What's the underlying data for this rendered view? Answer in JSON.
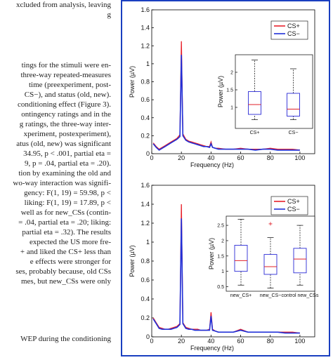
{
  "document": {
    "lines": [
      "xcluded from analysis, leaving",
      "g",
      "tings for the stimuli were en-",
      "three-way repeated-measures",
      "time (preexperiment, post-",
      "CS−), and status (old, new).",
      "conditioning effect (Figure 3).",
      "ontingency ratings and in the",
      "g ratings, the three-way inter-",
      "xperiment, postexperiment),",
      "atus (old, new) was significant",
      "34.95, p < .001, partial eta =",
      "9, p = .04, partial eta = .20).",
      "tion by examining the old and",
      "wo-way interaction was signifi-",
      "gency: F(1, 19) = 59.98, p <",
      "liking: F(1, 19) = 17.89, p <",
      "well as for new_CSs (contin-",
      "= .04, partial eta = .20; liking:",
      "partial eta = .32). The results",
      "expected the US more fre-",
      "+ and liked the CS+ less than",
      "e effects were stronger for",
      "ses, probably because, old CSs",
      "mes, but new_CSs were only",
      "WEP during the conditioning"
    ]
  },
  "chart_data": [
    {
      "type": "line",
      "xlabel": "Frequency (Hz)",
      "ylabel": "Power (µV)",
      "legend": "upper right",
      "x": [
        1,
        3,
        5,
        7,
        9,
        11,
        13,
        15,
        17,
        19,
        20,
        21,
        23,
        25,
        27,
        29,
        31,
        33,
        35,
        37,
        39,
        40,
        41,
        43,
        45,
        50,
        55,
        60,
        65,
        70,
        75,
        80,
        85,
        90,
        95,
        100
      ],
      "series": [
        {
          "name": "CS+",
          "color": "#e8202a",
          "values": [
            0.12,
            0.08,
            0.05,
            0.07,
            0.09,
            0.11,
            0.13,
            0.15,
            0.17,
            0.21,
            1.25,
            0.22,
            0.16,
            0.14,
            0.13,
            0.12,
            0.11,
            0.1,
            0.09,
            0.08,
            0.08,
            0.13,
            0.07,
            0.06,
            0.06,
            0.05,
            0.05,
            0.06,
            0.05,
            0.05,
            0.05,
            0.06,
            0.05,
            0.05,
            0.05,
            0.04
          ]
        },
        {
          "name": "CS−",
          "color": "#1f2fd8",
          "values": [
            0.11,
            0.07,
            0.04,
            0.06,
            0.08,
            0.1,
            0.12,
            0.14,
            0.16,
            0.19,
            1.1,
            0.2,
            0.15,
            0.13,
            0.12,
            0.11,
            0.1,
            0.09,
            0.08,
            0.08,
            0.07,
            0.11,
            0.07,
            0.06,
            0.05,
            0.05,
            0.05,
            0.05,
            0.05,
            0.04,
            0.05,
            0.05,
            0.04,
            0.04,
            0.04,
            0.04
          ]
        }
      ],
      "xlim": [
        0,
        110
      ],
      "xticks": [
        0,
        20,
        40,
        60,
        80,
        100
      ],
      "ylim": [
        0,
        1.6
      ],
      "yticks": [
        0,
        0.2,
        0.4,
        0.6,
        0.8,
        1,
        1.2,
        1.4,
        1.6
      ]
    },
    {
      "type": "box",
      "ylabel": "Power (µV)",
      "categories": [
        "CS+",
        "CS−"
      ],
      "box_color": "#2b2bd6",
      "median_color": "#e0202a",
      "boxes": [
        {
          "whisker_low": 0.65,
          "q1": 0.8,
          "median": 1.08,
          "q3": 1.45,
          "whisker_high": 2.35,
          "outliers": []
        },
        {
          "whisker_low": 0.65,
          "q1": 0.75,
          "median": 0.95,
          "q3": 1.4,
          "whisker_high": 2.1,
          "outliers": []
        }
      ],
      "ylim": [
        0.4,
        2.5
      ],
      "yticks": [
        1,
        1.5,
        2
      ]
    },
    {
      "type": "line",
      "xlabel": "Frequency (Hz)",
      "ylabel": "Power (µV)",
      "legend": "upper right",
      "x": [
        1,
        3,
        5,
        7,
        9,
        11,
        13,
        15,
        17,
        19,
        20,
        21,
        23,
        25,
        27,
        29,
        31,
        33,
        35,
        37,
        39,
        40,
        41,
        43,
        45,
        50,
        55,
        60,
        65,
        70,
        75,
        80,
        85,
        90,
        95,
        100
      ],
      "series": [
        {
          "name": "CS+",
          "color": "#e8202a",
          "values": [
            0.2,
            0.15,
            0.1,
            0.09,
            0.08,
            0.08,
            0.09,
            0.1,
            0.11,
            0.14,
            1.4,
            0.15,
            0.1,
            0.09,
            0.08,
            0.08,
            0.08,
            0.07,
            0.07,
            0.07,
            0.08,
            0.26,
            0.08,
            0.06,
            0.05,
            0.05,
            0.05,
            0.08,
            0.05,
            0.05,
            0.05,
            0.05,
            0.05,
            0.05,
            0.05,
            0.04
          ]
        },
        {
          "name": "CS−",
          "color": "#1f2fd8",
          "values": [
            0.19,
            0.14,
            0.09,
            0.08,
            0.08,
            0.08,
            0.08,
            0.09,
            0.1,
            0.13,
            1.25,
            0.14,
            0.09,
            0.08,
            0.08,
            0.07,
            0.07,
            0.07,
            0.07,
            0.07,
            0.07,
            0.22,
            0.07,
            0.06,
            0.05,
            0.05,
            0.05,
            0.07,
            0.05,
            0.05,
            0.05,
            0.05,
            0.05,
            0.04,
            0.04,
            0.04
          ]
        }
      ],
      "xlim": [
        0,
        110
      ],
      "xticks": [
        0,
        20,
        40,
        60,
        80,
        100
      ],
      "ylim": [
        0,
        1.6
      ],
      "yticks": [
        0,
        0.2,
        0.4,
        0.6,
        0.8,
        1,
        1.2,
        1.4,
        1.6
      ]
    },
    {
      "type": "box",
      "ylabel": "Power (µV)",
      "categories": [
        "new_CS+",
        "new_CS−",
        "control new_CSs"
      ],
      "box_color": "#2b2bd6",
      "median_color": "#e0202a",
      "boxes": [
        {
          "whisker_low": 0.55,
          "q1": 1.0,
          "median": 1.35,
          "q3": 1.85,
          "whisker_high": 2.7,
          "outliers": []
        },
        {
          "whisker_low": 0.45,
          "q1": 0.9,
          "median": 1.15,
          "q3": 1.55,
          "whisker_high": 2.1,
          "outliers": [
            2.55
          ]
        },
        {
          "whisker_low": 0.55,
          "q1": 0.95,
          "median": 1.4,
          "q3": 1.75,
          "whisker_high": 2.5,
          "outliers": []
        }
      ],
      "ylim": [
        0.35,
        2.8
      ],
      "yticks": [
        0.5,
        1,
        1.5,
        2,
        2.5
      ]
    }
  ]
}
